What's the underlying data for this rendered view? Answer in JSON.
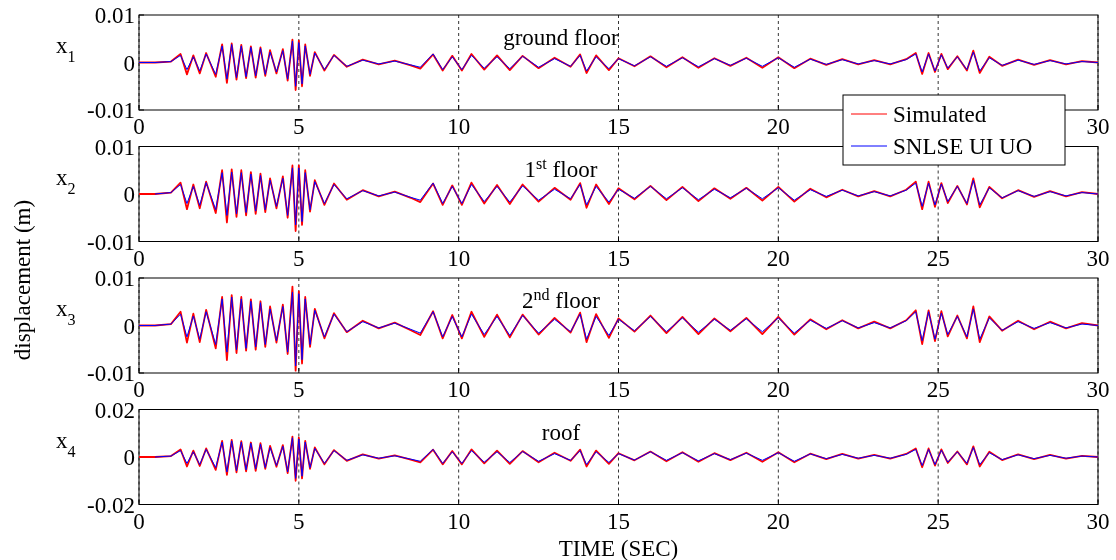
{
  "chart_data": [
    {
      "type": "line",
      "title": "ground floor",
      "ylabel": "x$_{1}$",
      "annotations": [
        "displacement (m)"
      ],
      "legend": "bottom right",
      "grid": "x",
      "xlim": [
        0,
        30
      ],
      "ylim": [
        -0.01,
        0.01
      ],
      "xticks": [
        0,
        5,
        10,
        15,
        20,
        {
          "value": 25,
          "label": null
        },
        30
      ],
      "yticks": [
        -0.01,
        0,
        0.01
      ],
      "x": [
        0,
        0.5,
        1,
        1.3,
        1.5,
        1.7,
        1.9,
        2.1,
        2.4,
        2.6,
        2.75,
        2.9,
        3.05,
        3.2,
        3.35,
        3.5,
        3.65,
        3.8,
        3.95,
        4.1,
        4.3,
        4.5,
        4.65,
        4.8,
        4.9,
        5.0,
        5.1,
        5.2,
        5.35,
        5.5,
        5.8,
        6.1,
        6.5,
        7,
        7.5,
        8,
        8.5,
        8.8,
        9.2,
        9.5,
        9.8,
        10.1,
        10.4,
        10.8,
        11.2,
        11.6,
        12,
        12.5,
        13,
        13.5,
        13.8,
        14,
        14.3,
        14.7,
        15,
        15.5,
        16,
        16.5,
        17,
        17.5,
        18,
        18.5,
        19,
        19.5,
        20,
        20.5,
        21,
        21.5,
        22,
        22.5,
        23,
        23.5,
        24,
        24.3,
        24.5,
        24.7,
        24.9,
        25.1,
        25.3,
        25.6,
        25.9,
        26.1,
        26.3,
        26.6,
        27,
        27.5,
        28,
        28.5,
        29,
        29.5,
        30
      ],
      "series": [
        {
          "name": "Simulated",
          "color": "#ff0000",
          "values": [
            0,
            0,
            0.0002,
            0.0018,
            -0.0025,
            0.0015,
            -0.0023,
            0.002,
            -0.003,
            0.0038,
            -0.0043,
            0.004,
            -0.0036,
            0.0037,
            -0.0033,
            0.0034,
            -0.0032,
            0.0032,
            -0.0028,
            0.0026,
            -0.0023,
            0.0028,
            -0.0038,
            0.0048,
            -0.0058,
            0.0046,
            -0.005,
            0.0038,
            -0.0028,
            0.0022,
            -0.0017,
            0.0016,
            -0.0009,
            0.0006,
            -0.0004,
            0.0004,
            -0.0006,
            -0.0013,
            0.0017,
            -0.0017,
            0.0014,
            -0.0017,
            0.0018,
            -0.0015,
            0.0015,
            -0.0016,
            0.0014,
            -0.0012,
            0.001,
            -0.0009,
            0.0017,
            -0.0022,
            0.0015,
            -0.0016,
            0.0009,
            -0.0008,
            0.0013,
            -0.001,
            0.0011,
            -0.0011,
            0.0009,
            -0.0007,
            0.001,
            -0.0011,
            0.0011,
            -0.0012,
            0.0008,
            -0.0005,
            0.0007,
            -0.0004,
            0.0005,
            -0.0004,
            0.0007,
            0.002,
            -0.0024,
            0.002,
            -0.002,
            0.0018,
            -0.0014,
            0.0013,
            -0.0017,
            0.0025,
            -0.0022,
            0.0012,
            -0.0007,
            0.0006,
            -0.0005,
            0.0005,
            -0.0004,
            0.0003,
            0
          ]
        },
        {
          "name": "SNLSE UI UO",
          "color": "#0000ff",
          "values": [
            0,
            0,
            0.0002,
            0.0015,
            -0.0015,
            0.0012,
            -0.0018,
            0.0018,
            -0.0025,
            0.0035,
            -0.0035,
            0.0038,
            -0.0032,
            0.0035,
            -0.003,
            0.0032,
            -0.0028,
            0.003,
            -0.0025,
            0.0022,
            -0.002,
            0.0025,
            -0.0035,
            0.0045,
            -0.005,
            0.0042,
            -0.0045,
            0.0035,
            -0.0025,
            0.002,
            -0.0015,
            0.0015,
            -0.0008,
            0.0005,
            -0.0003,
            0.0003,
            -0.0005,
            -0.001,
            0.0018,
            -0.0015,
            0.0012,
            -0.0015,
            0.0015,
            -0.0012,
            0.0012,
            -0.0013,
            0.0013,
            -0.001,
            0.0008,
            -0.0008,
            0.0015,
            -0.0018,
            0.0012,
            -0.0013,
            0.0008,
            -0.0007,
            0.0012,
            -0.0008,
            0.001,
            -0.0009,
            0.0008,
            -0.0006,
            0.0009,
            -0.0008,
            0.001,
            -0.001,
            0.0007,
            -0.0004,
            0.0006,
            -0.0003,
            0.0004,
            -0.0003,
            0.0006,
            0.0018,
            -0.002,
            0.0018,
            -0.0018,
            0.0016,
            -0.0012,
            0.0012,
            -0.0015,
            0.0022,
            -0.0018,
            0.001,
            -0.0006,
            0.0005,
            -0.0004,
            0.0004,
            -0.0003,
            0.0002,
            0
          ]
        }
      ]
    },
    {
      "type": "line",
      "title": "1$^{st}$ floor",
      "ylabel": "x$_{2}$",
      "grid": "x",
      "xlim": [
        0,
        30
      ],
      "ylim": [
        -0.01,
        0.01
      ],
      "xticks": [
        0,
        5,
        10,
        15,
        20,
        25,
        30
      ],
      "yticks": [
        -0.01,
        0,
        0.01
      ],
      "x": [
        0,
        0.5,
        1,
        1.3,
        1.5,
        1.7,
        1.9,
        2.1,
        2.4,
        2.6,
        2.75,
        2.9,
        3.05,
        3.2,
        3.35,
        3.5,
        3.65,
        3.8,
        3.95,
        4.1,
        4.3,
        4.5,
        4.65,
        4.8,
        4.9,
        5.0,
        5.1,
        5.2,
        5.35,
        5.5,
        5.8,
        6.1,
        6.5,
        7,
        7.5,
        8,
        8.5,
        8.8,
        9.2,
        9.5,
        9.8,
        10.1,
        10.4,
        10.8,
        11.2,
        11.6,
        12,
        12.5,
        13,
        13.5,
        13.8,
        14,
        14.3,
        14.7,
        15,
        15.5,
        16,
        16.5,
        17,
        17.5,
        18,
        18.5,
        19,
        19.5,
        20,
        20.5,
        21,
        21.5,
        22,
        22.5,
        23,
        23.5,
        24,
        24.3,
        24.5,
        24.7,
        24.9,
        25.1,
        25.3,
        25.6,
        25.9,
        26.1,
        26.3,
        26.6,
        27,
        27.5,
        28,
        28.5,
        29,
        29.5,
        30
      ],
      "series": [
        {
          "color": "#ff0000",
          "values": [
            0,
            0,
            0.0003,
            0.0024,
            -0.0032,
            0.002,
            -0.003,
            0.0026,
            -0.004,
            0.005,
            -0.006,
            0.0052,
            -0.0048,
            0.005,
            -0.0045,
            0.0046,
            -0.0042,
            0.0043,
            -0.0038,
            0.0033,
            -0.003,
            0.0037,
            -0.005,
            0.006,
            -0.0078,
            0.006,
            -0.0065,
            0.005,
            -0.0037,
            0.0029,
            -0.0023,
            0.0022,
            -0.0012,
            0.0008,
            -0.0005,
            0.0005,
            -0.0008,
            -0.0017,
            0.0022,
            -0.0023,
            0.0018,
            -0.0023,
            0.0024,
            -0.002,
            0.0019,
            -0.0021,
            0.002,
            -0.0016,
            0.0013,
            -0.0012,
            0.0023,
            -0.0029,
            0.002,
            -0.0021,
            0.0012,
            -0.0011,
            0.0017,
            -0.0013,
            0.0015,
            -0.0015,
            0.0012,
            -0.001,
            0.0013,
            -0.0014,
            0.0015,
            -0.0016,
            0.0011,
            -0.0007,
            0.0009,
            -0.0005,
            0.0006,
            -0.0005,
            0.0009,
            0.0026,
            -0.0032,
            0.0026,
            -0.0027,
            0.0023,
            -0.0019,
            0.0017,
            -0.0022,
            0.0033,
            -0.0028,
            0.0015,
            -0.0009,
            0.0008,
            -0.0006,
            0.0006,
            -0.0005,
            0.0004,
            0
          ]
        },
        {
          "color": "#0000ff",
          "values": [
            null,
            0,
            0.0003,
            0.002,
            -0.002,
            0.0016,
            -0.0024,
            0.0024,
            -0.0033,
            0.0045,
            -0.0045,
            0.0046,
            -0.0042,
            0.0045,
            -0.0039,
            0.0042,
            -0.0036,
            0.0039,
            -0.0033,
            0.0029,
            -0.0026,
            0.0033,
            -0.0045,
            0.0055,
            -0.0065,
            0.0055,
            -0.0058,
            0.0045,
            -0.0033,
            0.0026,
            -0.002,
            0.002,
            -0.001,
            0.0007,
            -0.0004,
            0.0004,
            -0.0007,
            -0.0013,
            0.0023,
            -0.002,
            0.0016,
            -0.002,
            0.002,
            -0.0016,
            0.0016,
            -0.0017,
            0.0017,
            -0.0013,
            0.001,
            -0.001,
            0.002,
            -0.0023,
            0.0016,
            -0.0017,
            0.001,
            -0.0009,
            0.0016,
            -0.001,
            0.0013,
            -0.0012,
            0.001,
            -0.0008,
            0.0012,
            -0.001,
            0.0013,
            -0.0013,
            0.0009,
            -0.0005,
            0.0008,
            -0.0004,
            0.0005,
            -0.0004,
            0.0008,
            0.0023,
            -0.0026,
            0.0023,
            -0.0023,
            0.0021,
            -0.0016,
            0.0016,
            -0.002,
            0.0029,
            -0.0023,
            0.0013,
            -0.0008,
            0.0007,
            -0.0005,
            0.0005,
            -0.0004,
            0.0003,
            0
          ]
        }
      ]
    },
    {
      "type": "line",
      "title": "2$^{nd}$ floor",
      "ylabel": "x$_{3}$",
      "grid": "x",
      "xlim": [
        0,
        30
      ],
      "ylim": [
        -0.01,
        0.01
      ],
      "xticks": [
        0,
        5,
        10,
        15,
        20,
        25,
        30
      ],
      "yticks": [
        -0.01,
        0,
        0.01
      ],
      "x": [
        0,
        0.5,
        1,
        1.3,
        1.5,
        1.7,
        1.9,
        2.1,
        2.4,
        2.6,
        2.75,
        2.9,
        3.05,
        3.2,
        3.35,
        3.5,
        3.65,
        3.8,
        3.95,
        4.1,
        4.3,
        4.5,
        4.65,
        4.8,
        4.9,
        5.0,
        5.1,
        5.2,
        5.35,
        5.5,
        5.8,
        6.1,
        6.5,
        7,
        7.5,
        8,
        8.5,
        8.8,
        9.2,
        9.5,
        9.8,
        10.1,
        10.4,
        10.8,
        11.2,
        11.6,
        12,
        12.5,
        13,
        13.5,
        13.8,
        14,
        14.3,
        14.7,
        15,
        15.5,
        16,
        16.5,
        17,
        17.5,
        18,
        18.5,
        19,
        19.5,
        20,
        20.5,
        21,
        21.5,
        22,
        22.5,
        23,
        23.5,
        24,
        24.3,
        24.5,
        24.7,
        24.9,
        25.1,
        25.3,
        25.6,
        25.9,
        26.1,
        26.3,
        26.6,
        27,
        27.5,
        28,
        28.5,
        29,
        29.5,
        30
      ],
      "series": [
        {
          "color": "#ff0000",
          "values": [
            0,
            0,
            0.0003,
            0.0029,
            -0.0036,
            0.0025,
            -0.0035,
            0.0033,
            -0.0048,
            0.006,
            -0.0073,
            0.0064,
            -0.0058,
            0.006,
            -0.0053,
            0.0055,
            -0.0051,
            0.0051,
            -0.0045,
            0.004,
            -0.0036,
            0.0044,
            -0.006,
            0.0082,
            -0.0095,
            0.0072,
            -0.008,
            0.006,
            -0.0045,
            0.0035,
            -0.0027,
            0.0026,
            -0.0014,
            0.001,
            -0.0006,
            0.0006,
            -0.001,
            -0.002,
            0.003,
            -0.0027,
            0.0022,
            -0.0027,
            0.0029,
            -0.0024,
            0.0023,
            -0.0025,
            0.0023,
            -0.0019,
            0.0016,
            -0.0015,
            0.0027,
            -0.0035,
            0.0024,
            -0.0026,
            0.0015,
            -0.0013,
            0.0021,
            -0.0016,
            0.0018,
            -0.0018,
            0.0015,
            -0.0012,
            0.0016,
            -0.0018,
            0.0018,
            -0.0019,
            0.0013,
            -0.0008,
            0.0011,
            -0.0006,
            0.0008,
            -0.0006,
            0.0011,
            0.0032,
            -0.0039,
            0.0032,
            -0.0033,
            0.003,
            -0.0023,
            0.0021,
            -0.0027,
            0.004,
            -0.0035,
            0.0019,
            -0.0011,
            0.001,
            -0.0008,
            0.0008,
            -0.0006,
            0.0005,
            0
          ]
        },
        {
          "color": "#0000ff",
          "values": [
            0,
            0,
            0.0003,
            0.0024,
            -0.0024,
            0.002,
            -0.0029,
            0.0029,
            -0.004,
            0.0056,
            -0.0056,
            0.006,
            -0.0051,
            0.0056,
            -0.0048,
            0.0051,
            -0.0045,
            0.0048,
            -0.004,
            0.0035,
            -0.0032,
            0.004,
            -0.0056,
            0.007,
            -0.0085,
            0.0067,
            -0.0072,
            0.0056,
            -0.004,
            0.0032,
            -0.0024,
            0.0024,
            -0.0013,
            0.0008,
            -0.0005,
            0.0005,
            -0.0008,
            -0.0016,
            0.0029,
            -0.0024,
            0.0019,
            -0.0024,
            0.0024,
            -0.0019,
            0.0019,
            -0.0021,
            0.0021,
            -0.0016,
            0.0013,
            -0.0013,
            0.0024,
            -0.0029,
            0.0019,
            -0.0021,
            0.0013,
            -0.0011,
            0.0019,
            -0.0013,
            0.0016,
            -0.0014,
            0.0013,
            -0.001,
            0.0014,
            -0.0013,
            0.0016,
            -0.0016,
            0.0011,
            -0.0006,
            0.001,
            -0.0005,
            0.0006,
            -0.0005,
            0.001,
            0.0029,
            -0.0032,
            0.0029,
            -0.0029,
            0.0026,
            -0.0019,
            0.0019,
            -0.0024,
            0.0035,
            -0.0029,
            0.0016,
            -0.001,
            0.0008,
            -0.0006,
            0.0006,
            -0.0005,
            0.0003,
            0
          ]
        }
      ]
    },
    {
      "type": "line",
      "title": "roof",
      "ylabel": "x$_{4}$",
      "xlabel": "TIME (SEC)",
      "grid": "x",
      "xlim": [
        0,
        30
      ],
      "ylim": [
        -0.02,
        0.02
      ],
      "xticks": [
        0,
        5,
        10,
        15,
        20,
        25,
        30
      ],
      "yticks": [
        -0.02,
        0,
        0.02
      ],
      "x": [
        0,
        0.5,
        1,
        1.3,
        1.5,
        1.7,
        1.9,
        2.1,
        2.4,
        2.6,
        2.75,
        2.9,
        3.05,
        3.2,
        3.35,
        3.5,
        3.65,
        3.8,
        3.95,
        4.1,
        4.3,
        4.5,
        4.65,
        4.8,
        4.9,
        5.0,
        5.1,
        5.2,
        5.35,
        5.5,
        5.8,
        6.1,
        6.5,
        7,
        7.5,
        8,
        8.5,
        8.8,
        9.2,
        9.5,
        9.8,
        10.1,
        10.4,
        10.8,
        11.2,
        11.6,
        12,
        12.5,
        13,
        13.5,
        13.8,
        14,
        14.3,
        14.7,
        15,
        15.5,
        16,
        16.5,
        17,
        17.5,
        18,
        18.5,
        19,
        19.5,
        20,
        20.5,
        21,
        21.5,
        22,
        22.5,
        23,
        23.5,
        24,
        24.3,
        24.5,
        24.7,
        24.9,
        25.1,
        25.3,
        25.6,
        25.9,
        26.1,
        26.3,
        26.6,
        27,
        27.5,
        28,
        28.5,
        29,
        29.5,
        30
      ],
      "series": [
        {
          "color": "#ff0000",
          "values": [
            0,
            0,
            0.0004,
            0.0032,
            -0.004,
            0.0027,
            -0.0038,
            0.0036,
            -0.0054,
            0.0068,
            -0.0075,
            0.0072,
            -0.0065,
            0.0067,
            -0.006,
            0.0061,
            -0.0058,
            0.0058,
            -0.005,
            0.0047,
            -0.0041,
            0.005,
            -0.0068,
            0.0086,
            -0.01,
            0.0082,
            -0.009,
            0.0068,
            -0.005,
            0.004,
            -0.0031,
            0.0029,
            -0.0016,
            0.0011,
            -0.0007,
            0.0007,
            -0.0011,
            -0.0023,
            0.0031,
            -0.0031,
            0.0025,
            -0.0031,
            0.0032,
            -0.0027,
            0.0027,
            -0.0029,
            0.0025,
            -0.0022,
            0.0018,
            -0.0016,
            0.0031,
            -0.004,
            0.0027,
            -0.0029,
            0.0016,
            -0.0014,
            0.0023,
            -0.0018,
            0.002,
            -0.002,
            0.0016,
            -0.0013,
            0.0018,
            -0.002,
            0.002,
            -0.0022,
            0.0014,
            -0.0009,
            0.0013,
            -0.0007,
            0.0009,
            -0.0007,
            0.0013,
            0.0036,
            -0.0043,
            0.0036,
            -0.0036,
            0.0032,
            -0.0025,
            0.0023,
            -0.0031,
            0.0045,
            -0.004,
            0.0022,
            -0.0013,
            0.0011,
            -0.0009,
            0.0009,
            -0.0007,
            0.0005,
            0
          ]
        },
        {
          "color": "#0000ff",
          "values": [
            null,
            0,
            0.0004,
            0.0027,
            -0.0027,
            0.0022,
            -0.0032,
            0.0032,
            -0.0045,
            0.0063,
            -0.0063,
            0.0068,
            -0.0058,
            0.0063,
            -0.0054,
            0.0058,
            -0.005,
            0.0054,
            -0.0045,
            0.004,
            -0.0036,
            0.0045,
            -0.0063,
            0.0081,
            -0.009,
            0.0076,
            -0.0081,
            0.0063,
            -0.0045,
            0.0036,
            -0.0027,
            0.0027,
            -0.0014,
            0.0009,
            -0.0005,
            0.0005,
            -0.0009,
            -0.0018,
            0.0032,
            -0.0027,
            0.0022,
            -0.0027,
            0.0027,
            -0.0022,
            0.0022,
            -0.0023,
            0.0023,
            -0.0018,
            0.0014,
            -0.0014,
            0.0027,
            -0.0032,
            0.0022,
            -0.0023,
            0.0014,
            -0.0013,
            0.0022,
            -0.0014,
            0.0018,
            -0.0016,
            0.0014,
            -0.0011,
            0.0016,
            -0.0014,
            0.0018,
            -0.0018,
            0.0013,
            -0.0007,
            0.0011,
            -0.0005,
            0.0007,
            -0.0005,
            0.0011,
            0.0032,
            -0.0036,
            0.0032,
            -0.0032,
            0.0029,
            -0.0022,
            0.0022,
            -0.0027,
            0.004,
            -0.0032,
            0.0018,
            -0.0011,
            0.0009,
            -0.0007,
            0.0007,
            -0.0005,
            0.0004,
            0
          ]
        }
      ]
    }
  ]
}
